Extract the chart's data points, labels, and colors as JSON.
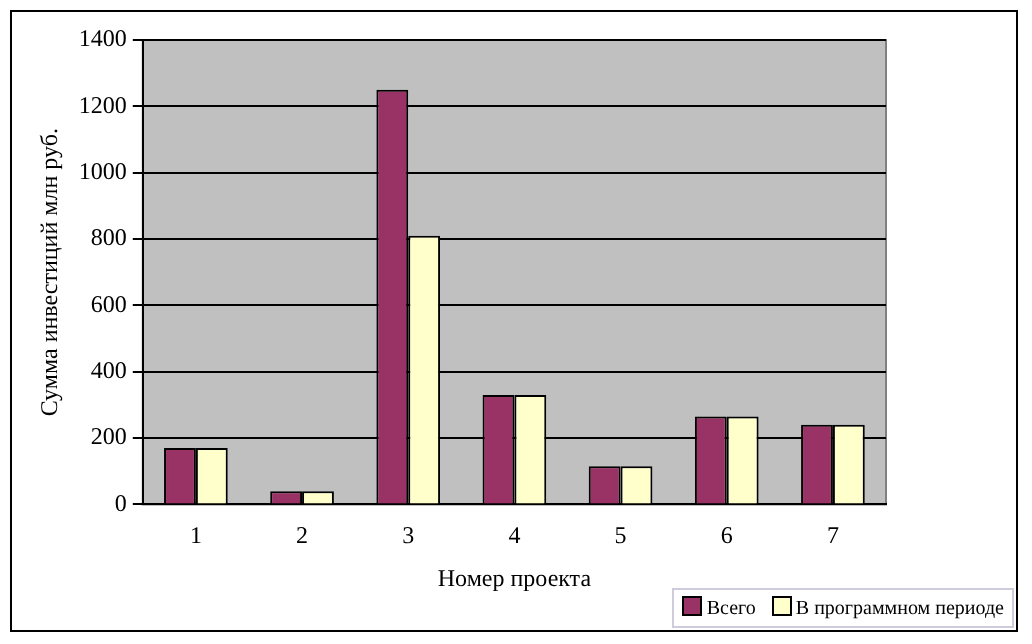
{
  "chart_data": {
    "type": "bar",
    "xlabel": "Номер проекта",
    "ylabel": "Сумма инвестиций млн руб.",
    "categories": [
      "1",
      "2",
      "3",
      "4",
      "5",
      "6",
      "7"
    ],
    "series": [
      {
        "name": "Всего",
        "color": "#993366",
        "values": [
          170,
          40,
          1250,
          330,
          115,
          265,
          240
        ]
      },
      {
        "name": "В программном периоде",
        "color": "#ffffcc",
        "values": [
          170,
          40,
          810,
          330,
          115,
          265,
          240
        ]
      }
    ],
    "ylim": [
      0,
      1400
    ],
    "yticks": [
      0,
      200,
      400,
      600,
      800,
      1000,
      1200,
      1400
    ],
    "grid": "y",
    "legend": "bottom right"
  }
}
